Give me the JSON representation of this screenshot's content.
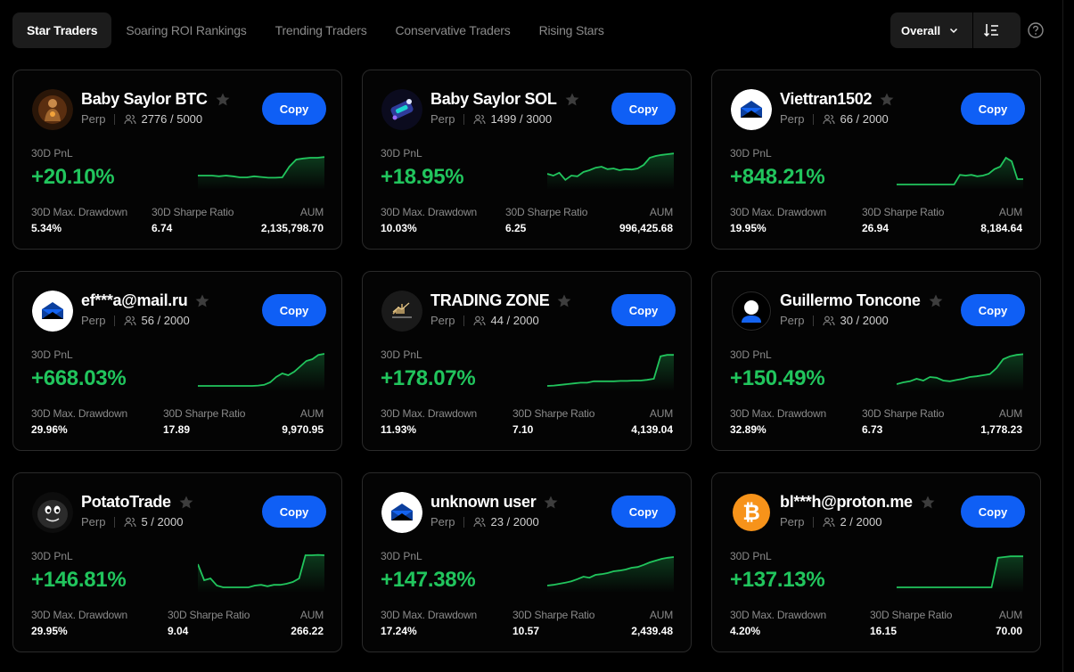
{
  "tabs": [
    {
      "label": "Star Traders",
      "active": true
    },
    {
      "label": "Soaring ROI Rankings",
      "active": false
    },
    {
      "label": "Trending Traders",
      "active": false
    },
    {
      "label": "Conservative Traders",
      "active": false
    },
    {
      "label": "Rising Stars",
      "active": false
    }
  ],
  "sort": {
    "selected": "Overall"
  },
  "labels": {
    "copy": "Copy",
    "perp": "Perp",
    "pnl": "30D PnL",
    "drawdown": "30D Max. Drawdown",
    "sharpe": "30D Sharpe Ratio",
    "aum": "AUM"
  },
  "colors": {
    "accent": "#0f5ff5",
    "positive": "#21c55d",
    "background": "#000000"
  },
  "traders": [
    {
      "name": "Baby Saylor BTC",
      "avatar": "bitcoin-monk-avatar",
      "followers": "2776 / 5000",
      "pnl": "+20.10%",
      "drawdown": "5.34%",
      "sharpe": "6.74",
      "aum": "2,135,798.70",
      "spark": [
        0.3,
        0.3,
        0.3,
        0.28,
        0.3,
        0.28,
        0.25,
        0.25,
        0.28,
        0.26,
        0.24,
        0.24,
        0.25,
        0.55,
        0.75,
        0.78,
        0.8,
        0.8,
        0.82
      ]
    },
    {
      "name": "Baby Saylor SOL",
      "avatar": "solana-robot-avatar",
      "followers": "1499 / 3000",
      "pnl": "+18.95%",
      "drawdown": "10.03%",
      "sharpe": "6.25",
      "aum": "996,425.68",
      "spark": [
        0.35,
        0.3,
        0.38,
        0.18,
        0.3,
        0.28,
        0.4,
        0.45,
        0.52,
        0.55,
        0.48,
        0.5,
        0.45,
        0.48,
        0.47,
        0.5,
        0.6,
        0.8,
        0.85,
        0.88,
        0.9,
        0.92
      ]
    },
    {
      "name": "Viettran1502",
      "avatar": "envelope-avatar",
      "followers": "66 / 2000",
      "pnl": "+848.21%",
      "drawdown": "19.95%",
      "sharpe": "26.94",
      "aum": "8,184.64",
      "spark": [
        0.05,
        0.05,
        0.05,
        0.05,
        0.05,
        0.05,
        0.05,
        0.05,
        0.05,
        0.05,
        0.05,
        0.32,
        0.3,
        0.32,
        0.28,
        0.3,
        0.35,
        0.48,
        0.55,
        0.8,
        0.7,
        0.2,
        0.2
      ]
    },
    {
      "name": "ef***a@mail.ru",
      "avatar": "envelope-avatar",
      "followers": "56 / 2000",
      "pnl": "+668.03%",
      "drawdown": "29.96%",
      "sharpe": "17.89",
      "aum": "9,970.95",
      "spark": [
        0.05,
        0.05,
        0.05,
        0.05,
        0.05,
        0.05,
        0.05,
        0.05,
        0.05,
        0.05,
        0.06,
        0.08,
        0.15,
        0.3,
        0.4,
        0.35,
        0.45,
        0.6,
        0.75,
        0.8,
        0.92,
        0.95
      ]
    },
    {
      "name": "TRADING ZONE",
      "avatar": "trading-zone-avatar",
      "followers": "44 / 2000",
      "pnl": "+178.07%",
      "drawdown": "11.93%",
      "sharpe": "7.10",
      "aum": "4,139.04",
      "spark": [
        0.05,
        0.06,
        0.08,
        0.1,
        0.12,
        0.14,
        0.14,
        0.18,
        0.18,
        0.18,
        0.18,
        0.19,
        0.19,
        0.2,
        0.2,
        0.22,
        0.25,
        0.88,
        0.92,
        0.92
      ]
    },
    {
      "name": "Guillermo Toncone",
      "avatar": "user-silhouette-avatar",
      "followers": "30 / 2000",
      "pnl": "+150.49%",
      "drawdown": "32.89%",
      "sharpe": "6.73",
      "aum": "1,778.23",
      "spark": [
        0.1,
        0.15,
        0.18,
        0.25,
        0.2,
        0.3,
        0.28,
        0.2,
        0.18,
        0.22,
        0.25,
        0.3,
        0.32,
        0.35,
        0.38,
        0.55,
        0.8,
        0.88,
        0.92,
        0.94
      ]
    },
    {
      "name": "PotatoTrade",
      "avatar": "potato-avatar",
      "followers": "5 / 2000",
      "pnl": "+146.81%",
      "drawdown": "29.95%",
      "sharpe": "9.04",
      "aum": "266.22",
      "spark": [
        0.7,
        0.25,
        0.3,
        0.1,
        0.05,
        0.05,
        0.05,
        0.05,
        0.05,
        0.1,
        0.12,
        0.08,
        0.12,
        0.12,
        0.15,
        0.2,
        0.3,
        0.95,
        0.95,
        0.96,
        0.95
      ]
    },
    {
      "name": "unknown user",
      "avatar": "envelope-avatar",
      "followers": "23 / 2000",
      "pnl": "+147.38%",
      "drawdown": "17.24%",
      "sharpe": "10.57",
      "aum": "2,439.48",
      "spark": [
        0.1,
        0.12,
        0.15,
        0.18,
        0.22,
        0.28,
        0.35,
        0.32,
        0.4,
        0.42,
        0.45,
        0.5,
        0.52,
        0.55,
        0.6,
        0.62,
        0.68,
        0.75,
        0.8,
        0.85,
        0.88,
        0.9
      ]
    },
    {
      "name": "bl***h@proton.me",
      "avatar": "bitcoin-avatar",
      "followers": "2 / 2000",
      "pnl": "+137.13%",
      "drawdown": "4.20%",
      "sharpe": "16.15",
      "aum": "70.00",
      "spark": [
        0.05,
        0.05,
        0.05,
        0.05,
        0.05,
        0.05,
        0.05,
        0.05,
        0.05,
        0.05,
        0.05,
        0.05,
        0.05,
        0.05,
        0.05,
        0.05,
        0.88,
        0.9,
        0.92,
        0.92,
        0.92
      ]
    }
  ]
}
